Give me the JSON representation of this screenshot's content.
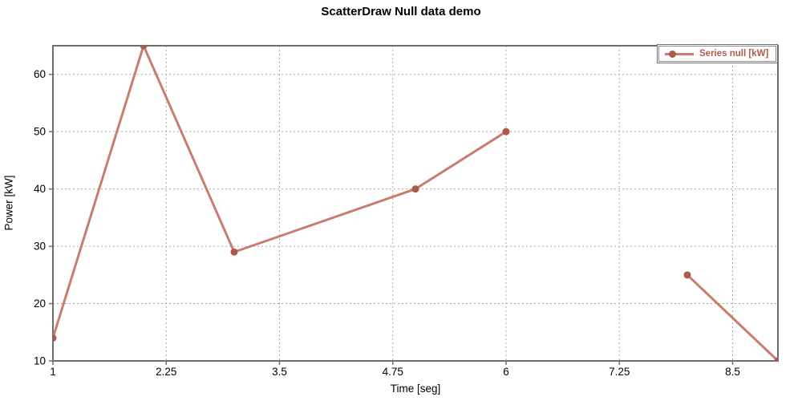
{
  "chart_data": {
    "type": "line",
    "title": "ScatterDraw Null data demo",
    "xlabel": "Time [seg]",
    "ylabel": "Power [kW]",
    "xlim": [
      1,
      9
    ],
    "ylim": [
      10,
      65
    ],
    "xticks": [
      1,
      2.25,
      3.5,
      4.75,
      6,
      7.25,
      8.5
    ],
    "yticks": [
      10,
      20,
      30,
      40,
      50,
      60
    ],
    "grid": true,
    "legend": {
      "position": "top-right"
    },
    "series": [
      {
        "name": "Series null [kW]",
        "line_color": "#c87d70",
        "marker_color": "#ae594c",
        "points": [
          [
            1,
            14
          ],
          [
            2,
            65
          ],
          [
            3,
            29
          ],
          [
            5,
            40
          ],
          [
            6,
            50
          ],
          [
            7,
            null
          ],
          [
            8,
            25
          ],
          [
            9,
            10
          ]
        ]
      }
    ]
  },
  "colors": {
    "plot_border": "#6e6e6e",
    "gridline": "#a9a9a9",
    "tick": "#6e6e6e",
    "tick_label": "#000000",
    "legend_border": "#6e6e6e",
    "legend_text": "#b2594d",
    "background": "#ffffff"
  }
}
